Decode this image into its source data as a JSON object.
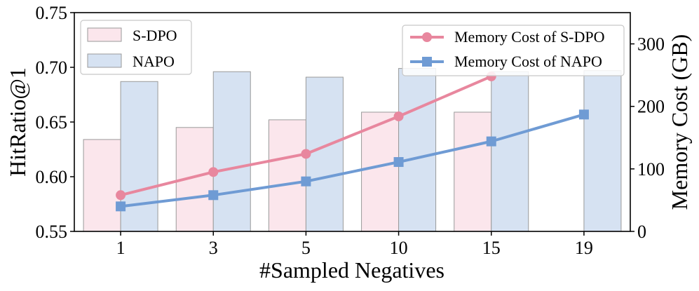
{
  "chart_data": {
    "type": "bar+line",
    "categories": [
      "1",
      "3",
      "5",
      "10",
      "15",
      "19"
    ],
    "xlabel": "#Sampled Negatives",
    "ylabel_left": "HitRatio@1",
    "ylabel_right": "Memory Cost (GB)",
    "ylim_left": [
      0.55,
      0.75
    ],
    "yticks_left": [
      "0.55",
      "0.60",
      "0.65",
      "0.70",
      "0.75"
    ],
    "ylim_right": [
      0,
      350
    ],
    "yticks_right": [
      "0",
      "100",
      "200",
      "300"
    ],
    "bars": [
      {
        "name": "S-DPO",
        "color": "#fbe6ec",
        "edge": "#9a9a9a",
        "values": [
          0.634,
          0.645,
          0.652,
          0.659,
          0.659,
          null
        ]
      },
      {
        "name": "NAPO",
        "color": "#d6e2f2",
        "edge": "#9a9a9a",
        "values": [
          0.687,
          0.696,
          0.691,
          0.699,
          0.696,
          0.697
        ]
      }
    ],
    "lines": [
      {
        "name": "Memory Cost of S-DPO",
        "color": "#e8879e",
        "marker": "circle",
        "values": [
          58,
          95,
          124,
          184,
          248,
          null
        ]
      },
      {
        "name": "Memory Cost of NAPO",
        "color": "#6f9bd4",
        "marker": "square",
        "values": [
          40,
          58,
          80,
          111,
          144,
          187
        ]
      }
    ],
    "legend_left_position": "top-left",
    "legend_right_position": "top-right"
  }
}
